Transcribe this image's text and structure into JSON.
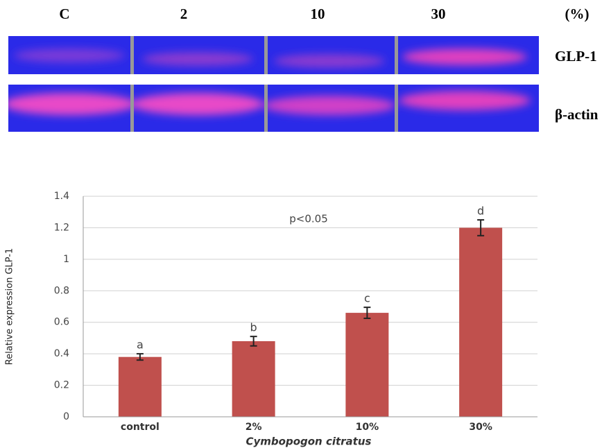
{
  "gel": {
    "lanes": [
      "C",
      "2",
      "10",
      "30"
    ],
    "unit": "(%)",
    "rows": [
      "GLP-1",
      "β-actin"
    ]
  },
  "chart_data": {
    "type": "bar",
    "categories": [
      "control",
      "2%",
      "10%",
      "30%"
    ],
    "values": [
      0.38,
      0.48,
      0.66,
      1.2
    ],
    "errors": [
      0.02,
      0.03,
      0.035,
      0.05
    ],
    "bar_labels": [
      "a",
      "b",
      "c",
      "d"
    ],
    "annotation": "p<0.05",
    "color": "#c0504d",
    "xlabel": "Cymbopogon citratus",
    "ylabel": "Relative expression GLP-1",
    "ylim": [
      0,
      1.4
    ],
    "yticks": [
      0,
      0.2,
      0.4,
      0.6,
      0.8,
      1,
      1.2,
      1.4
    ],
    "grid": true
  }
}
